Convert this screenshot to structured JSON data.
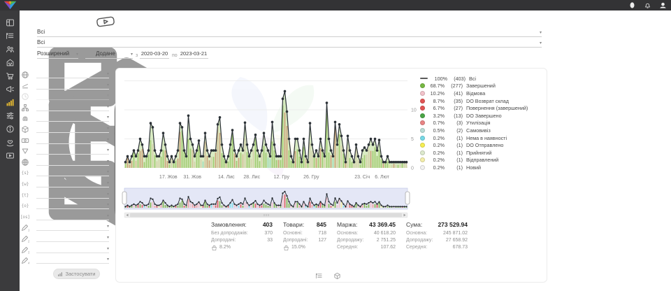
{
  "topbar": {
    "badge": "1",
    "icons": [
      "profile-oval-icon",
      "notifications-bell-icon",
      "account-avatar-icon"
    ]
  },
  "sidebar": {
    "items": [
      {
        "icon": "dashboard",
        "active": false
      },
      {
        "icon": "orders-list",
        "active": false
      },
      {
        "icon": "customers",
        "active": false
      },
      {
        "icon": "store",
        "active": false
      },
      {
        "icon": "cart",
        "active": false
      },
      {
        "icon": "megaphone",
        "active": false
      },
      {
        "icon": "analytics-chart",
        "active": true
      },
      {
        "icon": "sliders",
        "active": false
      },
      {
        "icon": "info",
        "active": false
      },
      {
        "icon": "partners",
        "active": false
      },
      {
        "icon": "video",
        "active": false
      }
    ]
  },
  "top_filters": {
    "chevron": "▾",
    "category": {
      "icon": "tree",
      "value": "Всі"
    },
    "product": {
      "icon": "package",
      "value": "Всі"
    },
    "mode": {
      "icon": "search",
      "value": "Розширений"
    },
    "date_field": {
      "icon": "calendar",
      "value": "Додане"
    },
    "from_label": "з",
    "date_from": "2020-03-20",
    "to_label": "по",
    "date_to": "2023-03-21"
  },
  "filter_panel": {
    "chevron": "▾",
    "rows": [
      {
        "icon": "globe"
      },
      {
        "icon": "layers"
      },
      {
        "icon": "clock",
        "disabled": true
      },
      {
        "icon": "sitemap"
      },
      {
        "icon": "fingerprint"
      },
      {
        "icon": "package"
      },
      {
        "icon": "banknote"
      },
      {
        "icon": "funnel"
      },
      {
        "icon": "web"
      },
      {
        "icon": "braces-s"
      },
      {
        "icon": "braces-w"
      },
      {
        "icon": "braces-t"
      },
      {
        "icon": "braces-o"
      },
      {
        "icon": "braces-os"
      },
      {
        "icon": "pen-1"
      },
      {
        "icon": "pen-2"
      },
      {
        "icon": "pen-3"
      },
      {
        "icon": "pen-4"
      }
    ],
    "apply_label": "Застосувати"
  },
  "chart_data": {
    "type": "line+stacked-bar",
    "ylabel": "",
    "xlabel": "",
    "ylim": [
      0,
      15
    ],
    "y_ticks": [
      "0",
      "5",
      "10"
    ],
    "grid": true,
    "legend_position": "right",
    "x_labels": [
      {
        "label": "17. Жов",
        "pos": 15.5
      },
      {
        "label": "31. Жов",
        "pos": 24
      },
      {
        "label": "14. Лис",
        "pos": 36
      },
      {
        "label": "28. Лис",
        "pos": 45
      },
      {
        "label": "12. Гру",
        "pos": 55.5
      },
      {
        "label": "26. Гру",
        "pos": 66
      },
      {
        "label": "23. Січ",
        "pos": 84
      },
      {
        "label": "6. Лют",
        "pos": 91
      }
    ],
    "values": [
      1,
      2,
      1,
      2,
      3,
      2,
      3,
      5,
      4,
      2,
      2,
      3,
      7.7,
      7,
      3,
      2,
      2,
      3,
      6,
      4,
      2,
      1,
      2,
      1,
      2,
      3,
      7.7,
      7,
      3,
      2,
      9,
      5,
      4,
      2,
      3,
      4.7,
      2,
      2,
      6,
      3,
      2,
      3,
      3,
      3,
      7.5,
      8.7,
      4,
      2,
      1,
      2,
      4,
      6.5,
      3,
      2,
      3,
      4,
      3,
      7.8,
      4,
      2,
      3,
      4,
      5.7,
      3,
      2,
      3,
      6,
      4,
      3,
      2,
      7.9,
      4,
      2,
      2,
      2,
      11.9,
      13.2,
      9.7,
      5,
      2,
      1,
      5,
      5,
      3,
      1,
      5,
      2,
      1,
      7.7,
      4,
      2,
      3,
      2,
      5,
      3,
      2,
      11.2,
      5,
      3,
      2,
      7.9,
      4,
      7.5,
      5.5,
      3,
      1,
      5.5,
      3,
      2,
      1,
      4,
      2,
      1,
      3,
      3.5,
      3,
      4,
      5,
      4,
      5,
      3,
      4.8,
      2,
      1,
      1,
      2,
      1,
      1,
      1,
      1,
      1,
      1,
      1,
      1,
      1
    ],
    "colors": {
      "line": "#2b3136",
      "area": "#b5d98a"
    },
    "bar_palette": [
      "#7cb342",
      "#e05757",
      "#f2bfc7",
      "#ef9a9a",
      "#f4ee9f",
      "#80deea"
    ],
    "legend": [
      {
        "swatch": "line",
        "color": "#5b5b5b",
        "percent": "100%",
        "count": "(403)",
        "label": "Всі"
      },
      {
        "swatch": "dot",
        "color": "#77b843",
        "percent": "68.7%",
        "count": "(277)",
        "label": "Завершений"
      },
      {
        "swatch": "dot",
        "color": "#f2c3cb",
        "percent": "10.2%",
        "count": "(41)",
        "label": "Відмова"
      },
      {
        "swatch": "dot",
        "color": "#e25555",
        "percent": "8.7%",
        "count": "(35)",
        "label": "DO Возврат склад"
      },
      {
        "swatch": "dot",
        "color": "#e25555",
        "percent": "6.7%",
        "count": "(27)",
        "label": "Повернення (завершений)"
      },
      {
        "swatch": "dot",
        "color": "#4aa546",
        "percent": "3.2%",
        "count": "(13)",
        "label": "DO Завершено"
      },
      {
        "swatch": "dot",
        "color": "#e98585",
        "percent": "0.7%",
        "count": "(3)",
        "label": "Утилізація"
      },
      {
        "swatch": "dot",
        "color": "#bcdcd6",
        "percent": "0.5%",
        "count": "(2)",
        "label": "Самовивіз"
      },
      {
        "swatch": "dot",
        "color": "#76d9e6",
        "percent": "0.2%",
        "count": "(1)",
        "label": "Нема в наявності"
      },
      {
        "swatch": "dot",
        "color": "#f6ee52",
        "percent": "0.2%",
        "count": "(1)",
        "label": "DO Отправлено"
      },
      {
        "swatch": "dot",
        "color": "#dde9cd",
        "percent": "0.2%",
        "count": "(1)",
        "label": "Прийнятий"
      },
      {
        "swatch": "dot",
        "color": "#f4eeab",
        "percent": "0.2%",
        "count": "(1)",
        "label": "Відправлений"
      },
      {
        "swatch": "dot",
        "color": "#f2f2f2",
        "percent": "0.2%",
        "count": "(1)",
        "label": "Новий"
      }
    ]
  },
  "stats": {
    "columns": [
      {
        "title": "Замовлення:",
        "value": "403",
        "rows": [
          {
            "label": "Без допродажів:",
            "value": "370"
          },
          {
            "label": "Допродані:",
            "value": "33"
          },
          {
            "icon": "bag",
            "value": "8.2%"
          }
        ]
      },
      {
        "title": "Товари:",
        "value": "845",
        "rows": [
          {
            "label": "Основні:",
            "value": "718"
          },
          {
            "label": "Допродані:",
            "value": "127"
          },
          {
            "icon": "bag",
            "value": "15.0%"
          }
        ]
      },
      {
        "title": "Маржа:",
        "value": "43 369.45",
        "rows": [
          {
            "label": "Основна:",
            "value": "40 618.20"
          },
          {
            "label": "Допродажу:",
            "value": "2 751.25"
          },
          {
            "label": "Середня:",
            "value": "107.62"
          }
        ]
      },
      {
        "title": "Сума:",
        "value": "273 529.94",
        "rows": [
          {
            "label": "Основна:",
            "value": "245 871.02"
          },
          {
            "label": "Допродажу:",
            "value": "27 658.92"
          },
          {
            "label": "Середня:",
            "value": "678.73"
          }
        ]
      }
    ]
  },
  "footer": {
    "icons": [
      "list-view",
      "package-view"
    ]
  }
}
